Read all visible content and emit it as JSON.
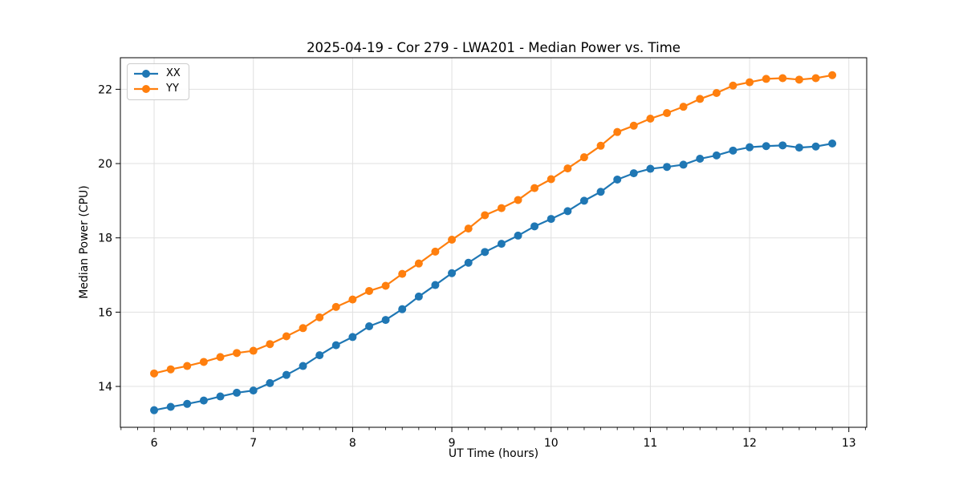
{
  "chart_data": {
    "type": "line",
    "title": "2025-04-19 - Cor 279 - LWA201 - Median Power vs. Time",
    "xlabel": "UT Time (hours)",
    "ylabel": "Median Power (CPU)",
    "xlim": [
      5.66,
      13.18
    ],
    "ylim": [
      12.9,
      22.85
    ],
    "xticks": [
      6,
      7,
      8,
      9,
      10,
      11,
      12,
      13
    ],
    "yticks": [
      14,
      16,
      18,
      20,
      22
    ],
    "x_minor_divisions": 6,
    "grid": true,
    "legend_position": "upper left",
    "x": [
      6.0,
      6.167,
      6.333,
      6.5,
      6.667,
      6.833,
      7.0,
      7.167,
      7.333,
      7.5,
      7.667,
      7.833,
      8.0,
      8.167,
      8.333,
      8.5,
      8.667,
      8.833,
      9.0,
      9.167,
      9.333,
      9.5,
      9.667,
      9.833,
      10.0,
      10.167,
      10.333,
      10.5,
      10.667,
      10.833,
      11.0,
      11.167,
      11.333,
      11.5,
      11.667,
      11.833,
      12.0,
      12.167,
      12.333,
      12.5,
      12.667,
      12.833
    ],
    "series": [
      {
        "name": "XX",
        "color": "#1f77b4",
        "values": [
          13.36,
          13.45,
          13.53,
          13.62,
          13.73,
          13.83,
          13.89,
          14.09,
          14.31,
          14.55,
          14.84,
          15.11,
          15.33,
          15.62,
          15.79,
          16.08,
          16.42,
          16.73,
          17.05,
          17.33,
          17.62,
          17.84,
          18.06,
          18.31,
          18.51,
          18.72,
          19.0,
          19.24,
          19.57,
          19.74,
          19.86,
          19.91,
          19.97,
          20.13,
          20.22,
          20.35,
          20.44,
          20.47,
          20.49,
          20.43,
          20.46,
          20.54
        ]
      },
      {
        "name": "YY",
        "color": "#ff7f0e",
        "values": [
          14.35,
          14.46,
          14.55,
          14.66,
          14.79,
          14.9,
          14.96,
          15.14,
          15.35,
          15.57,
          15.86,
          16.14,
          16.34,
          16.57,
          16.71,
          17.03,
          17.31,
          17.63,
          17.95,
          18.25,
          18.61,
          18.8,
          19.02,
          19.34,
          19.58,
          19.87,
          20.17,
          20.48,
          20.85,
          21.02,
          21.21,
          21.36,
          21.53,
          21.74,
          21.9,
          22.1,
          22.19,
          22.28,
          22.3,
          22.26,
          22.3,
          22.38
        ]
      }
    ],
    "style": {
      "grid_color": "#e0e0e0",
      "spine_color": "#000000",
      "tick_color": "#000000",
      "background": "#ffffff",
      "marker_radius": 5,
      "line_width": 2.2
    }
  }
}
